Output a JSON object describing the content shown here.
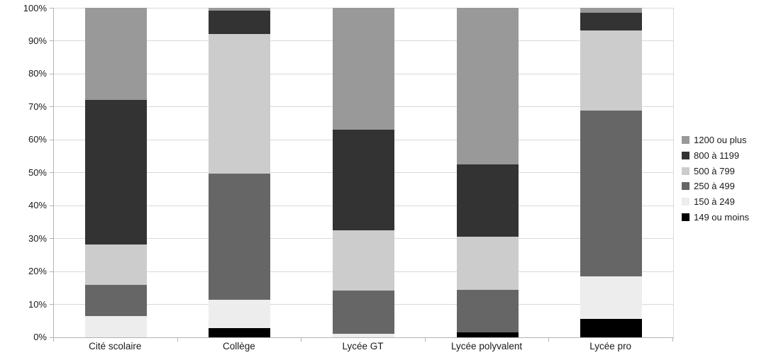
{
  "chart_data": {
    "type": "bar",
    "variant": "stacked-100-percent",
    "title": "",
    "xlabel": "",
    "ylabel": "",
    "categories": [
      "Cité scolaire",
      "Collège",
      "Lycée GT",
      "Lycée polyvalent",
      "Lycée pro"
    ],
    "series": [
      {
        "name": "149 ou moins",
        "color": "#000000",
        "values": [
          0,
          2.8,
          0,
          1.4,
          5.5
        ]
      },
      {
        "name": "150 à 249",
        "color": "#ededed",
        "values": [
          6.3,
          8.6,
          1.0,
          0,
          12.9
        ]
      },
      {
        "name": "250 à 499",
        "color": "#666666",
        "values": [
          9.5,
          38.3,
          13.0,
          12.9,
          50.4
        ]
      },
      {
        "name": "500 à 799",
        "color": "#cccccc",
        "values": [
          12.4,
          42.3,
          18.5,
          16.1,
          24.3
        ]
      },
      {
        "name": "800 à 1199",
        "color": "#333333",
        "values": [
          43.8,
          7.2,
          30.5,
          22.1,
          5.3
        ]
      },
      {
        "name": "1200 ou plus",
        "color": "#999999",
        "values": [
          28.0,
          0.8,
          37.0,
          47.5,
          1.6
        ]
      }
    ],
    "y_axis": {
      "min": 0,
      "max": 100,
      "step": 10,
      "tick_labels": [
        "0%",
        "10%",
        "20%",
        "30%",
        "40%",
        "50%",
        "60%",
        "70%",
        "80%",
        "90%",
        "100%"
      ]
    },
    "grid": true,
    "legend": {
      "position": "right",
      "order_top_to_bottom": [
        "1200 ou plus",
        "800 à 1199",
        "500 à 799",
        "250 à 499",
        "150 à 249",
        "149 ou moins"
      ]
    },
    "colors": {
      "background": "#ffffff",
      "gridline": "#d9d9d9",
      "axis": "#b3b3b3",
      "text": "#1a1a1a"
    }
  }
}
